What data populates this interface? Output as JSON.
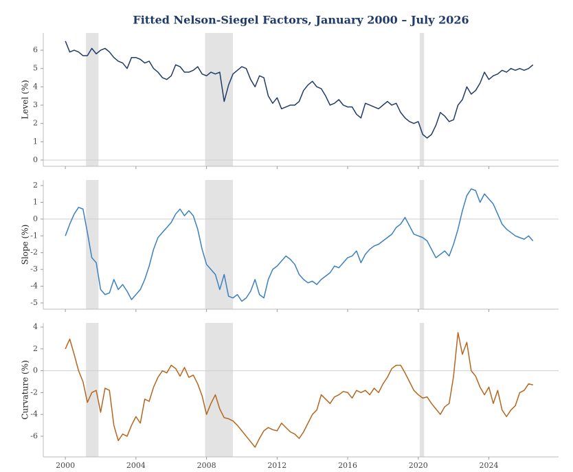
{
  "chart_data": {
    "type": "line",
    "title": "Fitted Nelson-Siegel Factors, January 2000 – July 2026",
    "xlim": [
      1998.75,
      2027.95
    ],
    "xticks": [
      2000,
      2004,
      2008,
      2012,
      2016,
      2020,
      2024
    ],
    "shaded": [
      [
        2001.17,
        2001.88
      ],
      [
        2007.92,
        2009.5
      ],
      [
        2020.08,
        2020.33
      ]
    ],
    "x": [
      2000,
      2000.25,
      2000.5,
      2000.75,
      2001,
      2001.25,
      2001.5,
      2001.75,
      2002,
      2002.25,
      2002.5,
      2002.75,
      2003,
      2003.25,
      2003.5,
      2003.75,
      2004,
      2004.25,
      2004.5,
      2004.75,
      2005,
      2005.25,
      2005.5,
      2005.75,
      2006,
      2006.25,
      2006.5,
      2006.75,
      2007,
      2007.25,
      2007.5,
      2007.75,
      2008,
      2008.25,
      2008.5,
      2008.75,
      2009,
      2009.25,
      2009.5,
      2009.75,
      2010,
      2010.25,
      2010.5,
      2010.75,
      2011,
      2011.25,
      2011.5,
      2011.75,
      2012,
      2012.25,
      2012.5,
      2012.75,
      2013,
      2013.25,
      2013.5,
      2013.75,
      2014,
      2014.25,
      2014.5,
      2014.75,
      2015,
      2015.25,
      2015.5,
      2015.75,
      2016,
      2016.25,
      2016.5,
      2016.75,
      2017,
      2017.25,
      2017.5,
      2017.75,
      2018,
      2018.25,
      2018.5,
      2018.75,
      2019,
      2019.25,
      2019.5,
      2019.75,
      2020,
      2020.25,
      2020.5,
      2020.75,
      2021,
      2021.25,
      2021.5,
      2021.75,
      2022,
      2022.25,
      2022.5,
      2022.75,
      2023,
      2023.25,
      2023.5,
      2023.75,
      2024,
      2024.25,
      2024.5,
      2024.75,
      2025,
      2025.25,
      2025.5,
      2025.75,
      2026,
      2026.25,
      2026.5
    ],
    "panels": [
      {
        "ylabel": "Level (%)",
        "ylim": [
          -0.34,
          6.94
        ],
        "yticks": [
          0,
          1,
          2,
          3,
          4,
          5,
          6
        ],
        "zero_line": true,
        "series": [
          {
            "color": "#1f3a68",
            "values": [
              6.5,
              5.9,
              6.0,
              5.9,
              5.7,
              5.7,
              6.1,
              5.8,
              6.0,
              6.1,
              5.9,
              5.6,
              5.4,
              5.3,
              5.0,
              5.6,
              5.6,
              5.5,
              5.3,
              5.4,
              5.0,
              4.8,
              4.5,
              4.4,
              4.6,
              5.2,
              5.1,
              4.8,
              4.8,
              4.9,
              5.1,
              4.7,
              4.6,
              4.8,
              4.7,
              4.8,
              3.2,
              4.1,
              4.7,
              4.9,
              5.1,
              5.0,
              4.4,
              4.0,
              4.6,
              4.5,
              3.5,
              3.1,
              3.4,
              2.8,
              2.9,
              3.0,
              3.0,
              3.2,
              3.8,
              4.1,
              4.3,
              4.0,
              3.9,
              3.5,
              3.0,
              3.1,
              3.3,
              3.0,
              2.9,
              2.9,
              2.5,
              2.3,
              3.1,
              3.0,
              2.9,
              2.8,
              3.0,
              3.2,
              3.0,
              3.1,
              2.6,
              2.3,
              2.1,
              2.0,
              2.1,
              1.4,
              1.2,
              1.4,
              1.9,
              2.6,
              2.4,
              2.1,
              2.2,
              3.0,
              3.3,
              4.0,
              3.6,
              3.8,
              4.2,
              4.8,
              4.4,
              4.6,
              4.7,
              4.9,
              4.8,
              5.0,
              4.9,
              5.0,
              4.9,
              5.0,
              5.2
            ]
          }
        ]
      },
      {
        "ylabel": "Slope (%)",
        "ylim": [
          -5.37,
          2.33
        ],
        "yticks": [
          -5,
          -4,
          -3,
          -2,
          -1,
          0,
          1,
          2
        ],
        "zero_line": true,
        "series": [
          {
            "color": "#3a7fbf",
            "values": [
              -1.0,
              -0.3,
              0.3,
              0.7,
              0.6,
              -0.8,
              -2.3,
              -2.6,
              -4.2,
              -4.5,
              -4.4,
              -3.6,
              -4.2,
              -3.9,
              -4.3,
              -4.8,
              -4.5,
              -4.2,
              -3.6,
              -2.8,
              -1.8,
              -1.1,
              -0.8,
              -0.5,
              -0.2,
              0.3,
              0.6,
              0.2,
              0.5,
              0.2,
              -0.6,
              -1.8,
              -2.7,
              -3.0,
              -3.3,
              -4.2,
              -3.3,
              -4.6,
              -4.7,
              -4.5,
              -4.9,
              -4.7,
              -4.3,
              -3.6,
              -4.5,
              -4.7,
              -3.6,
              -3.0,
              -2.8,
              -2.5,
              -2.2,
              -2.4,
              -2.7,
              -3.3,
              -3.6,
              -3.8,
              -3.7,
              -3.9,
              -3.6,
              -3.4,
              -3.2,
              -2.8,
              -2.9,
              -2.6,
              -2.3,
              -2.2,
              -1.9,
              -2.6,
              -2.1,
              -1.8,
              -1.6,
              -1.5,
              -1.3,
              -1.1,
              -0.9,
              -0.5,
              -0.3,
              0.1,
              -0.4,
              -0.9,
              -1.0,
              -1.1,
              -1.3,
              -1.8,
              -2.3,
              -2.1,
              -1.9,
              -2.2,
              -1.5,
              -0.6,
              0.5,
              1.4,
              1.8,
              1.7,
              1.0,
              1.5,
              1.2,
              0.9,
              0.3,
              -0.3,
              -0.6,
              -0.8,
              -1.0,
              -1.1,
              -1.2,
              -1.0,
              -1.3
            ]
          }
        ]
      },
      {
        "ylabel": "Curvature (%)",
        "ylim": [
          -7.89,
          4.38
        ],
        "yticks": [
          -6,
          -4,
          -2,
          0,
          2,
          4
        ],
        "zero_line": true,
        "series": [
          {
            "color": "#b5651d",
            "values": [
              2.0,
              2.9,
              1.5,
              0.0,
              -1.0,
              -2.9,
              -2.0,
              -1.8,
              -3.8,
              -1.6,
              -1.8,
              -5.0,
              -6.4,
              -5.8,
              -6.0,
              -5.0,
              -4.2,
              -4.8,
              -2.6,
              -2.8,
              -1.5,
              -0.6,
              0.0,
              -0.2,
              0.5,
              0.2,
              -0.5,
              0.3,
              -0.6,
              -0.4,
              -1.2,
              -2.3,
              -4.0,
              -3.0,
              -2.2,
              -3.5,
              -4.3,
              -4.4,
              -4.6,
              -5.0,
              -5.5,
              -6.0,
              -6.5,
              -7.0,
              -6.2,
              -5.5,
              -5.2,
              -5.4,
              -5.5,
              -4.8,
              -5.2,
              -5.6,
              -5.8,
              -6.2,
              -5.6,
              -4.8,
              -4.0,
              -3.6,
              -2.2,
              -2.6,
              -3.0,
              -2.4,
              -2.2,
              -1.9,
              -2.0,
              -2.5,
              -1.8,
              -2.0,
              -1.8,
              -2.2,
              -1.6,
              -2.0,
              -1.2,
              -0.6,
              0.2,
              0.5,
              0.5,
              -0.2,
              -1.0,
              -1.8,
              -2.2,
              -2.5,
              -2.4,
              -3.0,
              -3.5,
              -4.0,
              -3.3,
              -3.0,
              -0.5,
              3.5,
              1.5,
              2.6,
              0.0,
              -0.5,
              -1.5,
              -2.2,
              -1.5,
              -3.0,
              -1.8,
              -3.6,
              -4.2,
              -3.6,
              -3.2,
              -2.0,
              -1.8,
              -1.2,
              -1.3
            ]
          }
        ]
      }
    ]
  }
}
